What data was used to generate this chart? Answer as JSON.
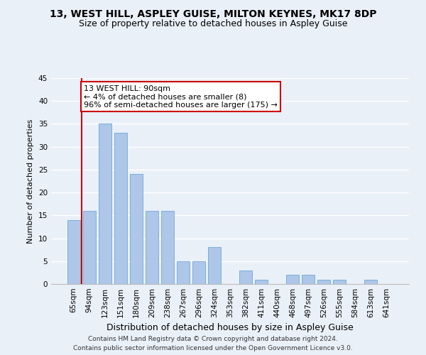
{
  "title1": "13, WEST HILL, ASPLEY GUISE, MILTON KEYNES, MK17 8DP",
  "title2": "Size of property relative to detached houses in Aspley Guise",
  "xlabel": "Distribution of detached houses by size in Aspley Guise",
  "ylabel": "Number of detached properties",
  "categories": [
    "65sqm",
    "94sqm",
    "123sqm",
    "151sqm",
    "180sqm",
    "209sqm",
    "238sqm",
    "267sqm",
    "296sqm",
    "324sqm",
    "353sqm",
    "382sqm",
    "411sqm",
    "440sqm",
    "468sqm",
    "497sqm",
    "526sqm",
    "555sqm",
    "584sqm",
    "613sqm",
    "641sqm"
  ],
  "values": [
    14,
    16,
    35,
    33,
    24,
    16,
    16,
    5,
    5,
    8,
    0,
    3,
    1,
    0,
    2,
    2,
    1,
    1,
    0,
    1,
    0
  ],
  "bar_color": "#aec6e8",
  "bar_edge_color": "#5a9fd4",
  "highlight_line_color": "#cc0000",
  "annotation_text": "13 WEST HILL: 90sqm\n← 4% of detached houses are smaller (8)\n96% of semi-detached houses are larger (175) →",
  "annotation_box_color": "#ffffff",
  "annotation_box_edge_color": "#cc0000",
  "ylim": [
    0,
    45
  ],
  "yticks": [
    0,
    5,
    10,
    15,
    20,
    25,
    30,
    35,
    40,
    45
  ],
  "background_color": "#eaf0f8",
  "grid_color": "#ffffff",
  "footnote1": "Contains HM Land Registry data © Crown copyright and database right 2024.",
  "footnote2": "Contains public sector information licensed under the Open Government Licence v3.0.",
  "title1_fontsize": 10,
  "title2_fontsize": 9,
  "xlabel_fontsize": 9,
  "ylabel_fontsize": 8,
  "tick_fontsize": 7.5,
  "footnote_fontsize": 6.5,
  "annotation_fontsize": 8
}
